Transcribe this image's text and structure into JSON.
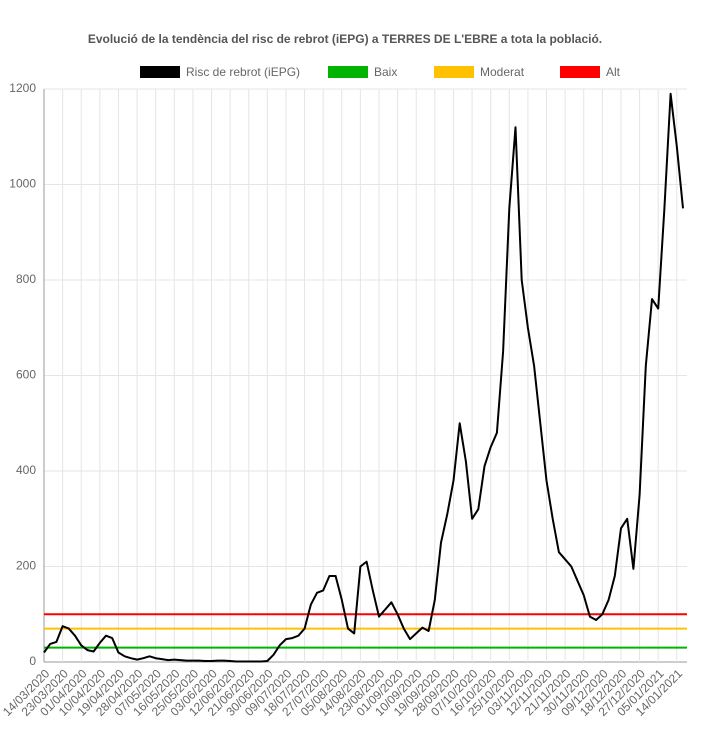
{
  "chart_data": {
    "type": "line",
    "title": "Evolució de la tendència del risc de rebrot (iEPG) a TERRES DE L'EBRE a tota la població.",
    "categories": [
      "14/03/2020",
      null,
      null,
      "23/03/2020",
      null,
      null,
      "01/04/2020",
      null,
      null,
      "10/04/2020",
      null,
      null,
      "19/04/2020",
      null,
      null,
      "28/04/2020",
      null,
      null,
      "07/05/2020",
      null,
      null,
      "16/05/2020",
      null,
      null,
      "25/05/2020",
      null,
      null,
      "03/06/2020",
      null,
      null,
      "12/06/2020",
      null,
      null,
      "21/06/2020",
      null,
      null,
      "30/06/2020",
      null,
      null,
      "09/07/2020",
      null,
      null,
      "18/07/2020",
      null,
      null,
      "27/07/2020",
      null,
      null,
      "05/08/2020",
      null,
      null,
      "14/08/2020",
      null,
      null,
      "23/08/2020",
      null,
      null,
      "01/09/2020",
      null,
      null,
      "10/09/2020",
      null,
      null,
      "19/09/2020",
      null,
      null,
      "28/09/2020",
      null,
      null,
      "07/10/2020",
      null,
      null,
      "16/10/2020",
      null,
      null,
      "25/10/2020",
      null,
      null,
      "03/11/2020",
      null,
      null,
      "12/11/2020",
      null,
      null,
      "21/11/2020",
      null,
      null,
      "30/11/2020",
      null,
      null,
      "09/12/2020",
      null,
      null,
      "18/12/2020",
      null,
      null,
      "27/12/2020",
      null,
      null,
      "05/01/2021",
      null,
      null,
      "14/01/2021",
      null
    ],
    "series": [
      {
        "name": "Risc de rebrot (iEPG)",
        "color": "#000000",
        "values": [
          20,
          38,
          42,
          75,
          70,
          55,
          35,
          25,
          22,
          40,
          55,
          50,
          20,
          12,
          8,
          5,
          8,
          12,
          8,
          6,
          4,
          5,
          4,
          3,
          3,
          3,
          2,
          2,
          3,
          3,
          2,
          1,
          1,
          1,
          1,
          1,
          2,
          15,
          35,
          48,
          50,
          55,
          70,
          120,
          145,
          150,
          180,
          180,
          130,
          70,
          60,
          200,
          210,
          150,
          95,
          110,
          125,
          100,
          70,
          48,
          60,
          72,
          65,
          130,
          250,
          310,
          380,
          500,
          420,
          300,
          320,
          410,
          450,
          480,
          650,
          950,
          1120,
          800,
          700,
          620,
          500,
          380,
          300,
          230,
          215,
          200,
          170,
          140,
          95,
          88,
          100,
          130,
          180,
          280,
          300,
          195,
          350,
          620,
          760,
          740,
          950,
          1190,
          1080,
          950
        ]
      }
    ],
    "reference_lines": [
      {
        "name": "Baix",
        "color": "#00b400",
        "value": 30
      },
      {
        "name": "Moderat",
        "color": "#ffc000",
        "value": 70
      },
      {
        "name": "Alt",
        "color": "#ff0000",
        "value": 100
      }
    ],
    "ylim": [
      0,
      1200
    ],
    "yticks": [
      0,
      200,
      400,
      600,
      800,
      1000,
      1200
    ],
    "grid": true
  }
}
